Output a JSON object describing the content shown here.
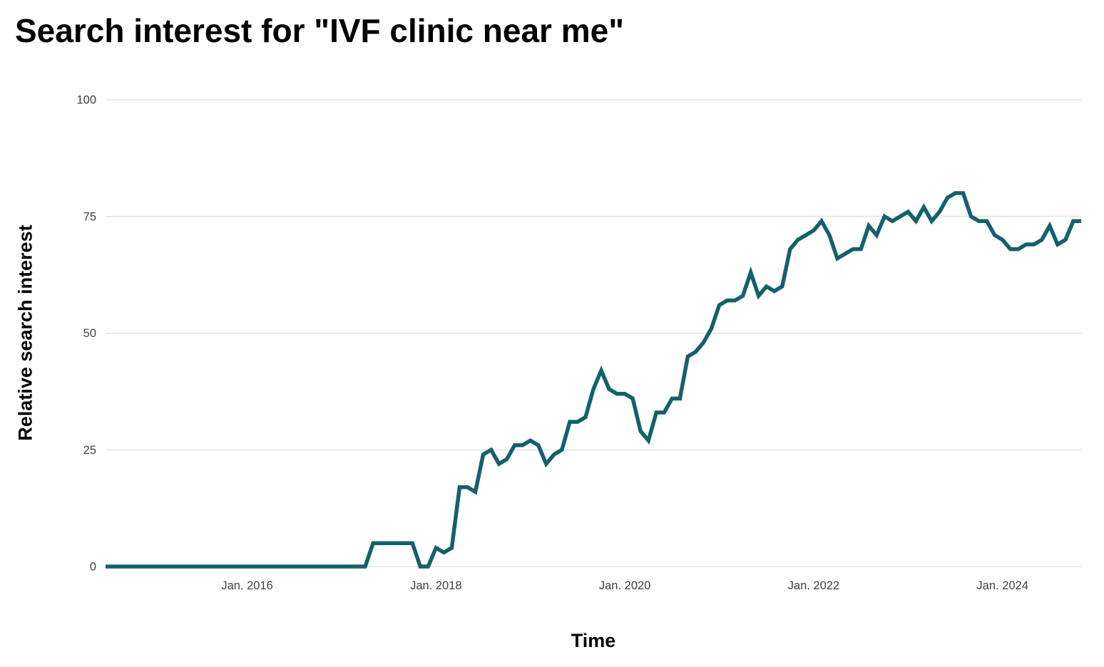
{
  "page": {
    "background": "#ffffff"
  },
  "chart_data": {
    "type": "line",
    "title": "Search interest for \"IVF clinic near me\"",
    "xlabel": "Time",
    "ylabel": "Relative search interest",
    "ylim": [
      0,
      100
    ],
    "y_ticks": [
      0,
      25,
      50,
      75,
      100
    ],
    "x_ticks": [
      {
        "label": "Jan. 2016",
        "year": 2016.0
      },
      {
        "label": "Jan. 2018",
        "year": 2018.0
      },
      {
        "label": "Jan. 2020",
        "year": 2020.0
      },
      {
        "label": "Jan. 2022",
        "year": 2022.0
      },
      {
        "label": "Jan. 2024",
        "year": 2024.0
      }
    ],
    "grid": "horizontal",
    "grid_color": "#d9d9d9",
    "tick_label_color": "#404040",
    "line_color": "#15606D",
    "line_width": 5.5,
    "legend": "none",
    "series_name": "Relative search interest",
    "x_start": "2014-07",
    "x_step_months": 1,
    "x_start_decimal_year": 2014.5,
    "values": [
      0,
      0,
      0,
      0,
      0,
      0,
      0,
      0,
      0,
      0,
      0,
      0,
      0,
      0,
      0,
      0,
      0,
      0,
      0,
      0,
      0,
      0,
      0,
      0,
      0,
      0,
      0,
      0,
      0,
      0,
      0,
      0,
      0,
      0,
      5,
      5,
      5,
      5,
      5,
      5,
      0,
      0,
      4,
      3,
      4,
      17,
      17,
      16,
      24,
      25,
      22,
      23,
      26,
      26,
      27,
      26,
      22,
      24,
      25,
      31,
      31,
      32,
      38,
      42,
      38,
      37,
      37,
      36,
      29,
      27,
      33,
      33,
      36,
      36,
      45,
      46,
      48,
      51,
      56,
      57,
      57,
      58,
      63,
      58,
      60,
      59,
      60,
      68,
      70,
      71,
      72,
      74,
      71,
      66,
      67,
      68,
      68,
      73,
      71,
      75,
      74,
      75,
      76,
      74,
      77,
      74,
      76,
      79,
      80,
      80,
      75,
      74,
      74,
      71,
      70,
      68,
      68,
      69,
      69,
      70,
      73,
      69,
      70,
      74,
      74
    ]
  }
}
